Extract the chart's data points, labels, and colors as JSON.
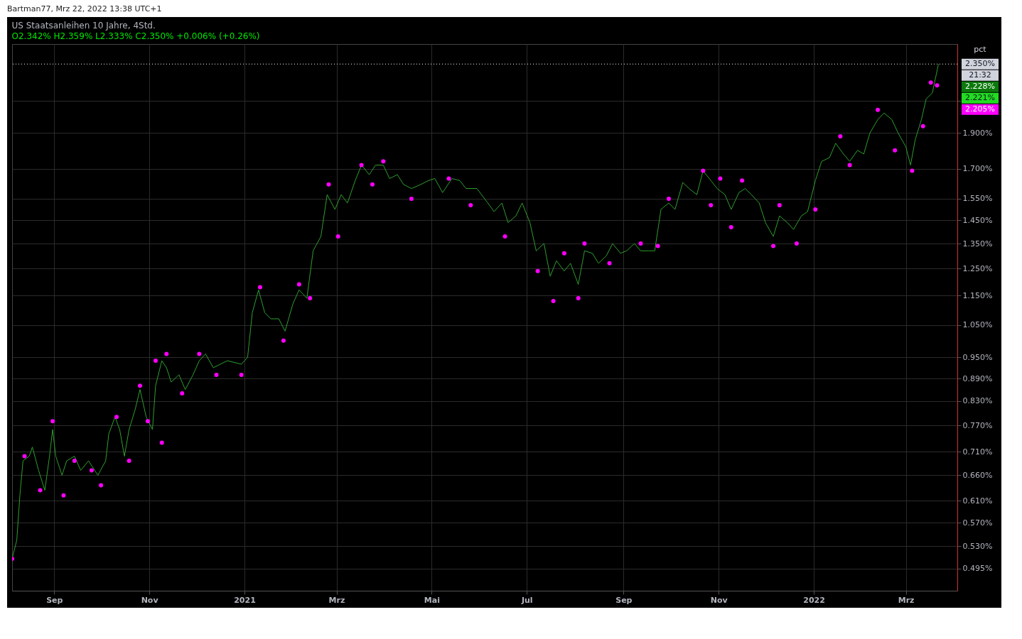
{
  "chart_data": {
    "type": "line",
    "title": "US Staatsanleihen 10 Jahre, 4Std.",
    "subtitle": "O2.342%  H2.359%  L2.333%  C2.350%  +0.006% (+0.26%)",
    "log": "y",
    "grid": true,
    "xlim": [
      "2020-08-05",
      "2022-04-03"
    ],
    "xticks": [
      {
        "value": "2020-09-01",
        "label": "Sep"
      },
      {
        "value": "2020-11-01",
        "label": "Nov"
      },
      {
        "value": "2021-01-01",
        "label": "2021"
      },
      {
        "value": "2021-03-01",
        "label": "Mrz"
      },
      {
        "value": "2021-05-01",
        "label": "Mai"
      },
      {
        "value": "2021-07-01",
        "label": "Jul"
      },
      {
        "value": "2021-09-01",
        "label": "Sep"
      },
      {
        "value": "2021-11-01",
        "label": "Nov"
      },
      {
        "value": "2022-01-01",
        "label": "2022"
      },
      {
        "value": "2022-03-01",
        "label": "Mrz"
      }
    ],
    "ylim": [
      0.462,
      2.5
    ],
    "yticks": [
      {
        "value": 0.495,
        "label": "0.495%"
      },
      {
        "value": 0.53,
        "label": "0.530%"
      },
      {
        "value": 0.57,
        "label": "0.570%"
      },
      {
        "value": 0.61,
        "label": "0.610%"
      },
      {
        "value": 0.66,
        "label": "0.660%"
      },
      {
        "value": 0.71,
        "label": "0.710%"
      },
      {
        "value": 0.77,
        "label": "0.770%"
      },
      {
        "value": 0.83,
        "label": "0.830%"
      },
      {
        "value": 0.89,
        "label": "0.890%"
      },
      {
        "value": 0.95,
        "label": "0.950%"
      },
      {
        "value": 1.05,
        "label": "1.050%"
      },
      {
        "value": 1.15,
        "label": "1.150%"
      },
      {
        "value": 1.25,
        "label": "1.250%"
      },
      {
        "value": 1.35,
        "label": "1.350%"
      },
      {
        "value": 1.45,
        "label": "1.450%"
      },
      {
        "value": 1.55,
        "label": "1.550%"
      },
      {
        "value": 1.7,
        "label": "1.700%"
      },
      {
        "value": 1.9,
        "label": "1.900%"
      },
      {
        "value": 2.1,
        "label": null
      }
    ],
    "ref_lines": [
      {
        "axis": "y",
        "value": 2.35,
        "label": "2.350%",
        "line_style": "dotted",
        "color": "#ffffff"
      }
    ],
    "annotations": [
      "Bartman77, Mrz 22, 2022 13:38 UTC+1",
      "pct",
      "21:32",
      "2.228%",
      "2.221%",
      "2.205%"
    ],
    "series": [
      {
        "color": "#2e9e2e",
        "x": [
          "2020-08-05",
          "2020-08-08",
          "2020-08-10",
          "2020-08-12",
          "2020-08-16",
          "2020-08-18",
          "2020-08-22",
          "2020-08-26",
          "2020-08-29",
          "2020-08-31",
          "2020-09-02",
          "2020-09-06",
          "2020-09-09",
          "2020-09-14",
          "2020-09-18",
          "2020-09-23",
          "2020-09-29",
          "2020-10-04",
          "2020-10-06",
          "2020-10-10",
          "2020-10-13",
          "2020-10-16",
          "2020-10-19",
          "2020-10-23",
          "2020-10-26",
          "2020-10-30",
          "2020-11-03",
          "2020-11-05",
          "2020-11-09",
          "2020-11-12",
          "2020-11-15",
          "2020-11-20",
          "2020-11-24",
          "2020-11-29",
          "2020-12-03",
          "2020-12-07",
          "2020-12-12",
          "2020-12-21",
          "2020-12-30",
          "2021-01-03",
          "2021-01-06",
          "2021-01-10",
          "2021-01-14",
          "2021-01-18",
          "2021-01-23",
          "2021-01-27",
          "2021-02-01",
          "2021-02-05",
          "2021-02-10",
          "2021-02-14",
          "2021-02-19",
          "2021-02-23",
          "2021-02-28",
          "2021-03-04",
          "2021-03-08",
          "2021-03-13",
          "2021-03-17",
          "2021-03-22",
          "2021-03-26",
          "2021-03-31",
          "2021-04-04",
          "2021-04-09",
          "2021-04-13",
          "2021-04-18",
          "2021-04-24",
          "2021-04-29",
          "2021-05-03",
          "2021-05-08",
          "2021-05-14",
          "2021-05-19",
          "2021-05-23",
          "2021-05-30",
          "2021-06-06",
          "2021-06-10",
          "2021-06-15",
          "2021-06-19",
          "2021-06-24",
          "2021-06-28",
          "2021-07-03",
          "2021-07-07",
          "2021-07-12",
          "2021-07-16",
          "2021-07-20",
          "2021-07-25",
          "2021-07-29",
          "2021-08-03",
          "2021-08-07",
          "2021-08-12",
          "2021-08-16",
          "2021-08-21",
          "2021-08-25",
          "2021-08-30",
          "2021-09-03",
          "2021-09-08",
          "2021-09-12",
          "2021-09-17",
          "2021-09-21",
          "2021-09-25",
          "2021-09-30",
          "2021-10-04",
          "2021-10-09",
          "2021-10-13",
          "2021-10-18",
          "2021-10-22",
          "2021-10-27",
          "2021-10-31",
          "2021-11-05",
          "2021-11-09",
          "2021-11-14",
          "2021-11-18",
          "2021-11-22",
          "2021-11-27",
          "2021-12-01",
          "2021-12-06",
          "2021-12-10",
          "2021-12-15",
          "2021-12-19",
          "2021-12-24",
          "2021-12-28",
          "2022-01-02",
          "2022-01-06",
          "2022-01-11",
          "2022-01-15",
          "2022-01-20",
          "2022-01-24",
          "2022-01-29",
          "2022-02-02",
          "2022-02-06",
          "2022-02-11",
          "2022-02-15",
          "2022-02-20",
          "2022-02-24",
          "2022-03-01",
          "2022-03-04",
          "2022-03-07",
          "2022-03-11",
          "2022-03-14",
          "2022-03-18",
          "2022-03-20",
          "2022-03-21T21:32"
        ],
        "values": [
          0.51,
          0.54,
          0.62,
          0.69,
          0.7,
          0.72,
          0.67,
          0.63,
          0.7,
          0.76,
          0.7,
          0.66,
          0.69,
          0.7,
          0.67,
          0.69,
          0.66,
          0.69,
          0.75,
          0.79,
          0.76,
          0.7,
          0.76,
          0.81,
          0.86,
          0.79,
          0.76,
          0.87,
          0.94,
          0.92,
          0.88,
          0.9,
          0.86,
          0.9,
          0.94,
          0.96,
          0.92,
          0.94,
          0.93,
          0.95,
          1.09,
          1.17,
          1.09,
          1.07,
          1.07,
          1.03,
          1.12,
          1.17,
          1.14,
          1.32,
          1.38,
          1.57,
          1.5,
          1.57,
          1.53,
          1.64,
          1.72,
          1.67,
          1.72,
          1.72,
          1.65,
          1.67,
          1.62,
          1.6,
          1.62,
          1.64,
          1.65,
          1.58,
          1.65,
          1.64,
          1.6,
          1.6,
          1.53,
          1.49,
          1.53,
          1.44,
          1.47,
          1.53,
          1.44,
          1.32,
          1.35,
          1.22,
          1.28,
          1.24,
          1.27,
          1.19,
          1.32,
          1.31,
          1.27,
          1.3,
          1.35,
          1.31,
          1.32,
          1.35,
          1.32,
          1.32,
          1.32,
          1.5,
          1.53,
          1.5,
          1.63,
          1.6,
          1.57,
          1.69,
          1.64,
          1.6,
          1.57,
          1.5,
          1.58,
          1.6,
          1.57,
          1.53,
          1.44,
          1.38,
          1.47,
          1.44,
          1.41,
          1.47,
          1.49,
          1.64,
          1.74,
          1.76,
          1.84,
          1.78,
          1.74,
          1.8,
          1.78,
          1.9,
          1.98,
          2.02,
          1.98,
          1.9,
          1.82,
          1.72,
          1.86,
          1.98,
          2.11,
          2.15,
          2.25,
          2.35
        ]
      },
      {
        "type": "scatter",
        "color": "#ff00ff",
        "marker": "circle",
        "x": [
          "2020-08-05",
          "2020-08-13",
          "2020-08-23",
          "2020-08-31",
          "2020-09-07",
          "2020-09-14",
          "2020-09-25",
          "2020-10-01",
          "2020-10-11",
          "2020-10-19",
          "2020-10-26",
          "2020-10-31",
          "2020-11-05",
          "2020-11-09",
          "2020-11-12",
          "2020-11-22",
          "2020-12-03",
          "2020-12-14",
          "2020-12-30",
          "2021-01-11",
          "2021-01-26",
          "2021-02-05",
          "2021-02-12",
          "2021-02-24",
          "2021-03-02",
          "2021-03-17",
          "2021-03-24",
          "2021-03-31",
          "2021-04-18",
          "2021-05-12",
          "2021-05-26",
          "2021-06-17",
          "2021-07-08",
          "2021-07-18",
          "2021-07-25",
          "2021-08-03",
          "2021-08-07",
          "2021-08-23",
          "2021-09-12",
          "2021-09-23",
          "2021-09-30",
          "2021-10-22",
          "2021-10-27",
          "2021-11-02",
          "2021-11-09",
          "2021-11-16",
          "2021-12-06",
          "2021-12-10",
          "2021-12-21",
          "2022-01-02",
          "2022-01-18",
          "2022-01-24",
          "2022-02-11",
          "2022-02-22",
          "2022-03-05",
          "2022-03-12",
          "2022-03-17",
          "2022-03-21"
        ],
        "values": [
          0.51,
          0.7,
          0.63,
          0.78,
          0.62,
          0.69,
          0.67,
          0.64,
          0.79,
          0.69,
          0.87,
          0.78,
          0.94,
          0.73,
          0.96,
          0.85,
          0.96,
          0.9,
          0.9,
          1.18,
          1.0,
          1.19,
          1.14,
          1.62,
          1.38,
          1.72,
          1.62,
          1.74,
          1.55,
          1.65,
          1.52,
          1.38,
          1.24,
          1.13,
          1.31,
          1.14,
          1.35,
          1.27,
          1.35,
          1.34,
          1.55,
          1.69,
          1.52,
          1.65,
          1.42,
          1.64,
          1.34,
          1.52,
          1.35,
          1.5,
          1.88,
          1.72,
          2.04,
          1.8,
          1.69,
          1.94,
          2.22,
          2.2
        ]
      }
    ]
  }
}
